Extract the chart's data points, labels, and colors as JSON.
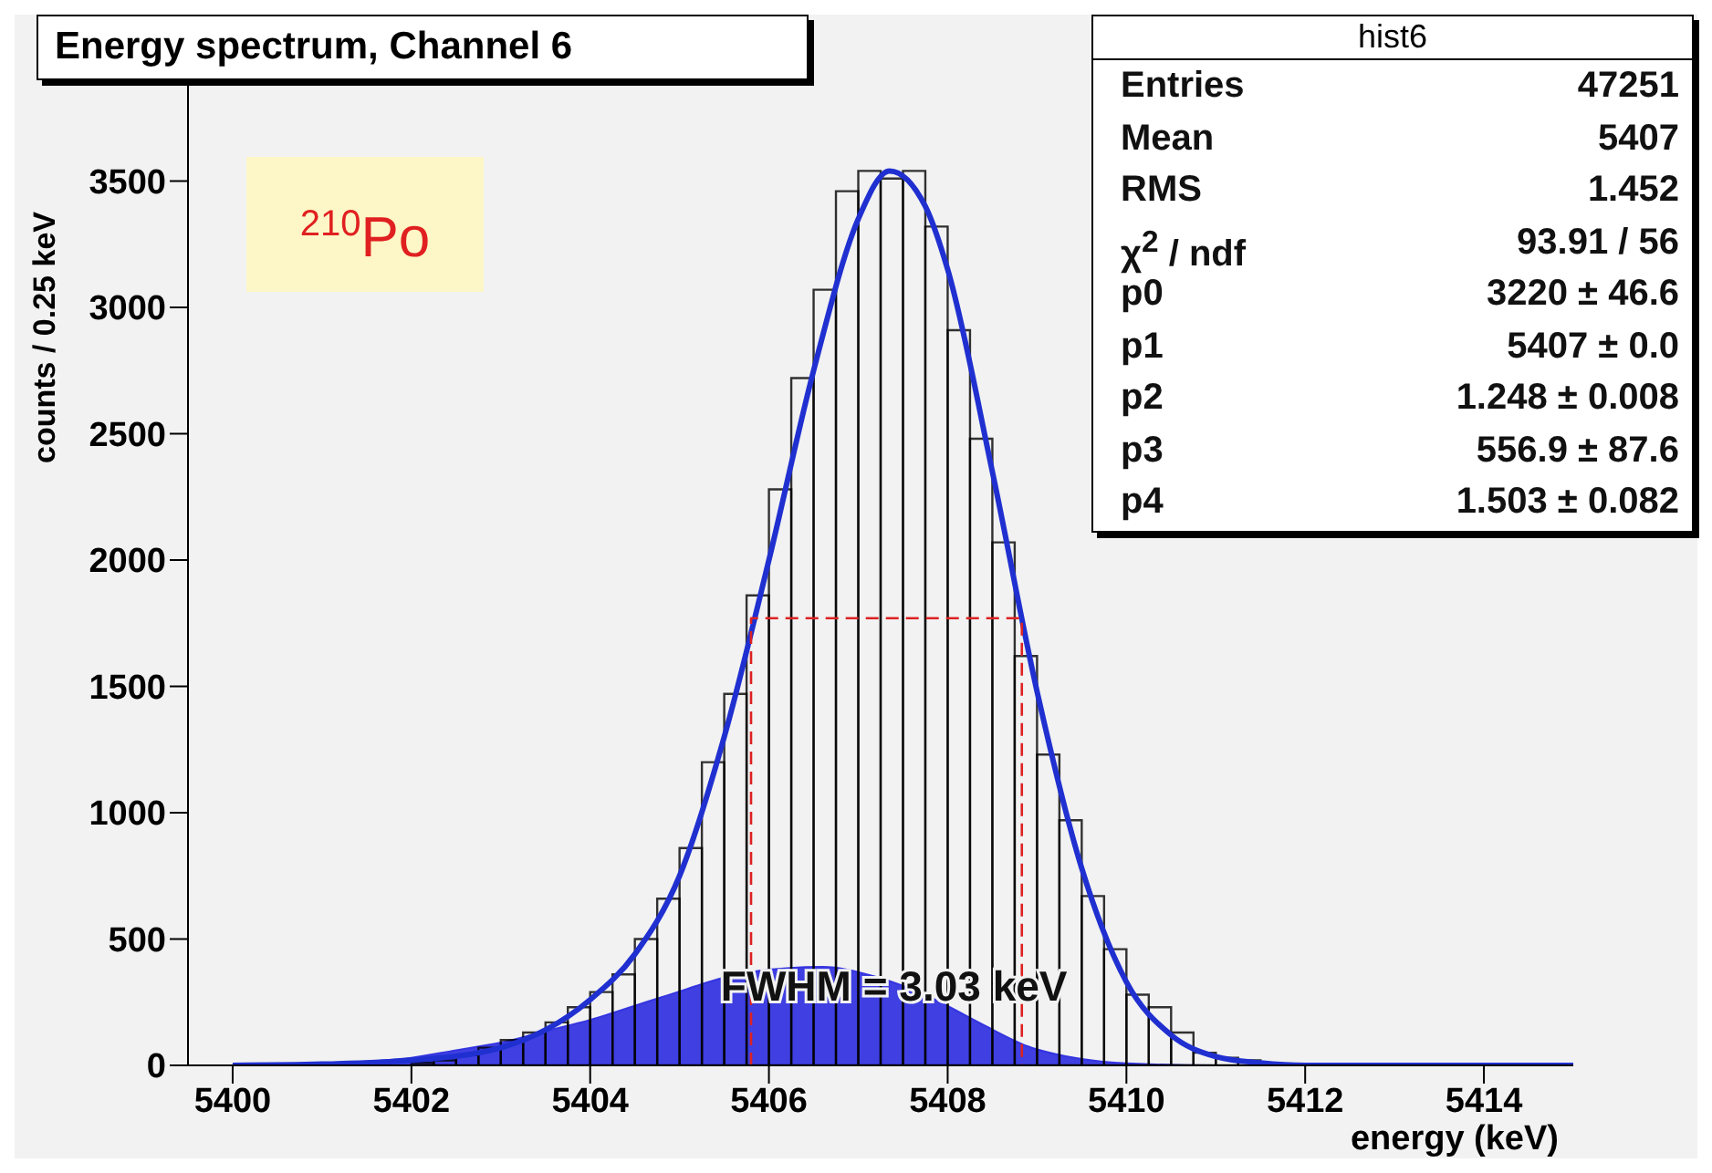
{
  "chart_data": {
    "type": "histogram",
    "title": "Energy spectrum, Channel 6",
    "xlabel": "energy (keV)",
    "ylabel": "counts / 0.25 keV",
    "xlim": [
      5399.5,
      5415
    ],
    "xticks": [
      5400,
      5402,
      5404,
      5406,
      5408,
      5410,
      5412,
      5414
    ],
    "ylim": [
      0,
      4000
    ],
    "yticks": [
      0,
      500,
      1000,
      1500,
      2000,
      2500,
      3000,
      3500
    ],
    "marker": "none",
    "series": [
      {
        "type": "area",
        "color": "#3535e0",
        "x": [
          5400,
          5401,
          5402,
          5402.5,
          5403,
          5403.5,
          5404,
          5404.8,
          5405.8,
          5406.6,
          5407.2,
          5407.8,
          5408.4,
          5408.9,
          5409.5,
          5410,
          5411,
          5415
        ],
        "values": [
          0,
          8,
          30,
          60,
          90,
          135,
          180,
          270,
          370,
          390,
          350,
          270,
          160,
          75,
          25,
          8,
          0,
          0
        ]
      },
      {
        "color": "#000000",
        "bins": [
          5402,
          5402.25,
          5402.5,
          5402.75,
          5403,
          5403.25,
          5403.5,
          5403.75,
          5404,
          5404.25,
          5404.5,
          5404.75,
          5405,
          5405.25,
          5405.5,
          5405.75,
          5406,
          5406.25,
          5406.5,
          5406.75,
          5407,
          5407.25,
          5407.5,
          5407.75,
          5408,
          5408.25,
          5408.5,
          5408.75,
          5409,
          5409.25,
          5409.5,
          5409.75,
          5410,
          5410.25,
          5410.5,
          5410.75,
          5411,
          5411.25,
          5411.5,
          5411.75,
          5412
        ],
        "values": [
          10,
          20,
          40,
          70,
          100,
          130,
          170,
          230,
          290,
          360,
          500,
          660,
          860,
          1200,
          1470,
          1860,
          2280,
          2720,
          3070,
          3460,
          3540,
          3510,
          3540,
          3320,
          2910,
          2480,
          2070,
          1620,
          1230,
          970,
          670,
          460,
          280,
          230,
          130,
          50,
          30,
          20,
          null,
          0
        ]
      },
      {
        "type": "line",
        "color": "#2030d0",
        "x": [
          5400,
          5401,
          5402,
          5403,
          5403.5,
          5404,
          5404.5,
          5405,
          5405.5,
          5406,
          5406.5,
          5407,
          5407.35,
          5407.75,
          5408,
          5408.5,
          5409,
          5409.5,
          5410,
          5410.5,
          5411,
          5411.5,
          5412,
          5413,
          5415
        ],
        "values": [
          0,
          5,
          20,
          70,
          140,
          260,
          440,
          750,
          1300,
          2000,
          2750,
          3350,
          3540,
          3400,
          3150,
          2350,
          1480,
          780,
          330,
          120,
          35,
          10,
          0,
          0,
          0
        ]
      },
      {
        "type": "line",
        "color": "#dd2222",
        "line_style": "dashed",
        "x": [
          5405.8,
          5405.8,
          5408.83,
          5408.83
        ],
        "values": [
          0,
          1770,
          1770,
          0
        ]
      }
    ],
    "annotations": [
      "$^{210}$Po",
      {
        "text": "FWHM = 3.03 keV",
        "x": 5407.4,
        "y": 300
      },
      "hist6",
      "Entries",
      "47251",
      "Mean",
      "5407",
      "RMS",
      "1.452",
      "χ$^{2}$ / ndf",
      "93.91 / 56",
      "p0",
      "3220 ± 46.6",
      "p1",
      "5407 ± 0.0",
      "p2",
      "1.248 ± 0.008",
      "p3",
      "556.9 ± 87.6",
      "p4",
      "1.503 ± 0.082"
    ]
  }
}
